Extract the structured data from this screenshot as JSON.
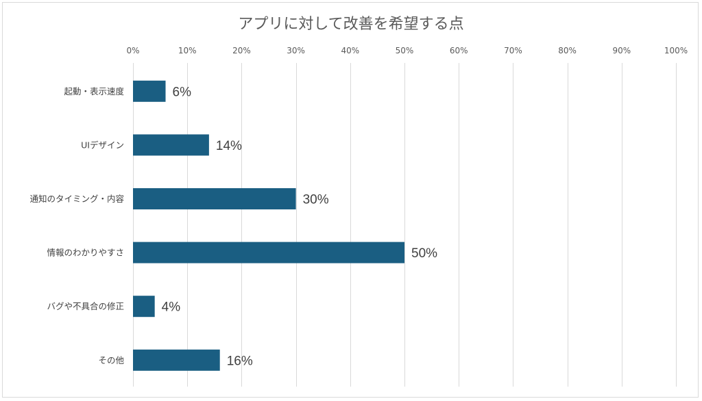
{
  "chart_data": {
    "type": "bar",
    "orientation": "horizontal",
    "title": "アプリに対して改善を希望する点",
    "categories": [
      "起動・表示速度",
      "UIデザイン",
      "通知のタイミング・内容",
      "情報のわかりやすさ",
      "バグや不具合の修正",
      "その他"
    ],
    "values": [
      6,
      14,
      30,
      50,
      4,
      16
    ],
    "data_labels": [
      "6%",
      "14%",
      "30%",
      "50%",
      "4%",
      "16%"
    ],
    "xlim": [
      0,
      100
    ],
    "x_ticks": [
      0,
      10,
      20,
      30,
      40,
      50,
      60,
      70,
      80,
      90,
      100
    ],
    "x_tick_labels": [
      "0%",
      "10%",
      "20%",
      "30%",
      "40%",
      "50%",
      "60%",
      "70%",
      "80%",
      "90%",
      "100%"
    ],
    "x_axis_position": "top",
    "grid": true,
    "bar_color": "#1a5e82"
  }
}
